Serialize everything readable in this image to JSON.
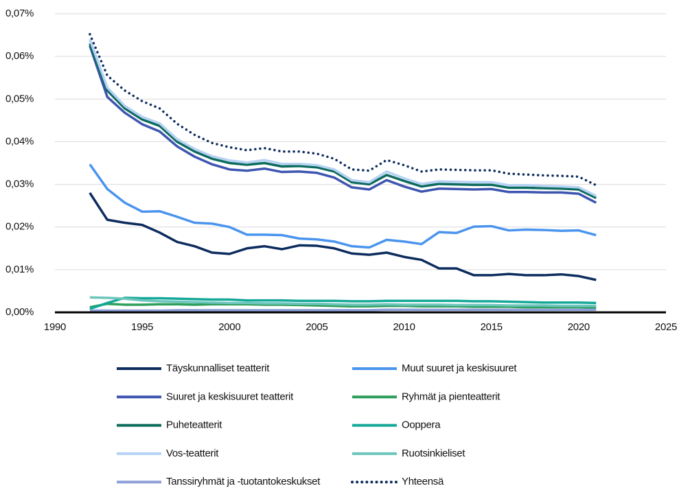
{
  "chart_data": {
    "type": "line",
    "x": [
      1992,
      1993,
      1994,
      1995,
      1996,
      1997,
      1998,
      1999,
      2000,
      2001,
      2002,
      2003,
      2004,
      2005,
      2006,
      2007,
      2008,
      2009,
      2010,
      2011,
      2012,
      2013,
      2014,
      2015,
      2016,
      2017,
      2018,
      2019,
      2020,
      2021
    ],
    "xlim": [
      1990,
      2025
    ],
    "xticks": [
      1990,
      1995,
      2000,
      2005,
      2010,
      2015,
      2020,
      2025
    ],
    "ylim": [
      0,
      0.07
    ],
    "yticks": [
      {
        "value": 0,
        "label": "0,00%"
      },
      {
        "value": 0.01,
        "label": "0,01%"
      },
      {
        "value": 0.02,
        "label": "0,02%"
      },
      {
        "value": 0.03,
        "label": "0,03%"
      },
      {
        "value": 0.04,
        "label": "0,04%"
      },
      {
        "value": 0.05,
        "label": "0,05%"
      },
      {
        "value": 0.06,
        "label": "0,06%"
      },
      {
        "value": 0.07,
        "label": "0,07%"
      }
    ],
    "grid": true,
    "legend": "bottom",
    "series": [
      {
        "name": "Täyskunnalliset teatterit",
        "color": "#0d2c5e",
        "values": [
          0.028,
          0.0217,
          0.021,
          0.0205,
          0.0187,
          0.0165,
          0.0155,
          0.014,
          0.0137,
          0.015,
          0.0155,
          0.0148,
          0.0157,
          0.0156,
          0.015,
          0.0138,
          0.0135,
          0.014,
          0.013,
          0.0123,
          0.0103,
          0.0103,
          0.0087,
          0.0087,
          0.009,
          0.0087,
          0.0087,
          0.0089,
          0.0085,
          0.0076
        ]
      },
      {
        "name": "Muut suuret ja keskisuuret",
        "color": "#4a94ee",
        "values": [
          0.0347,
          0.0289,
          0.0257,
          0.0236,
          0.0237,
          0.0224,
          0.021,
          0.0208,
          0.02,
          0.0182,
          0.0182,
          0.0181,
          0.0173,
          0.0171,
          0.0166,
          0.0155,
          0.0152,
          0.017,
          0.0166,
          0.016,
          0.0188,
          0.0186,
          0.0201,
          0.0202,
          0.0192,
          0.0194,
          0.0193,
          0.0191,
          0.0192,
          0.0181
        ]
      },
      {
        "name": "Suuret ja keskisuuret teatterit",
        "color": "#3d55b0",
        "values": [
          0.0625,
          0.0505,
          0.0468,
          0.0441,
          0.0424,
          0.0389,
          0.0365,
          0.0347,
          0.0335,
          0.0332,
          0.0337,
          0.0329,
          0.033,
          0.0327,
          0.0316,
          0.0293,
          0.0288,
          0.031,
          0.0295,
          0.0283,
          0.029,
          0.0289,
          0.0288,
          0.0289,
          0.0282,
          0.0282,
          0.0281,
          0.0281,
          0.0278,
          0.0257
        ]
      },
      {
        "name": "Ryhmät ja pienteatterit",
        "color": "#2e9e5b",
        "values": [
          0.0012,
          0.002,
          0.0018,
          0.0018,
          0.0019,
          0.0019,
          0.0018,
          0.0019,
          0.0019,
          0.0019,
          0.0018,
          0.0018,
          0.0017,
          0.0016,
          0.0015,
          0.0014,
          0.0014,
          0.0015,
          0.0015,
          0.0014,
          0.0014,
          0.0014,
          0.0013,
          0.0013,
          0.0013,
          0.0012,
          0.0012,
          0.0012,
          0.0012,
          0.0011
        ]
      },
      {
        "name": "Puheteatterit",
        "color": "#0b6b5c",
        "values": [
          0.063,
          0.052,
          0.0478,
          0.0452,
          0.0437,
          0.04,
          0.0377,
          0.036,
          0.035,
          0.0346,
          0.035,
          0.0342,
          0.0343,
          0.034,
          0.033,
          0.0305,
          0.03,
          0.0322,
          0.0308,
          0.0295,
          0.0301,
          0.03,
          0.0299,
          0.0299,
          0.0292,
          0.0292,
          0.0291,
          0.029,
          0.0288,
          0.0268
        ]
      },
      {
        "name": "Ooppera",
        "color": "#14a898",
        "values": [
          0.0008,
          0.0022,
          0.0034,
          0.0033,
          0.0033,
          0.0032,
          0.0031,
          0.003,
          0.003,
          0.0028,
          0.0028,
          0.0028,
          0.0027,
          0.0027,
          0.0027,
          0.0026,
          0.0026,
          0.0027,
          0.0027,
          0.0027,
          0.0027,
          0.0027,
          0.0026,
          0.0026,
          0.0025,
          0.0024,
          0.0023,
          0.0023,
          0.0023,
          0.0022
        ]
      },
      {
        "name": "Vos-teatterit",
        "color": "#b6d2f4",
        "values": [
          0.064,
          0.0527,
          0.0484,
          0.0458,
          0.0443,
          0.0406,
          0.0383,
          0.0366,
          0.0356,
          0.0351,
          0.0357,
          0.0348,
          0.0348,
          0.0345,
          0.0335,
          0.031,
          0.0305,
          0.033,
          0.0314,
          0.0301,
          0.0307,
          0.0306,
          0.0305,
          0.0305,
          0.0298,
          0.0298,
          0.0296,
          0.0295,
          0.0293,
          0.0273
        ]
      },
      {
        "name": "Ruotsinkieliset",
        "color": "#6cc6bd",
        "values": [
          0.0035,
          0.0034,
          0.0032,
          0.0028,
          0.0026,
          0.0025,
          0.0024,
          0.0023,
          0.0022,
          0.0022,
          0.0021,
          0.0021,
          0.002,
          0.002,
          0.0019,
          0.0018,
          0.0018,
          0.0019,
          0.0018,
          0.0018,
          0.0018,
          0.0017,
          0.0017,
          0.0017,
          0.0016,
          0.0016,
          0.0016,
          0.0015,
          0.0015,
          0.0015
        ]
      },
      {
        "name": "Tanssiryhmät ja -tuotantokeskukset",
        "color": "#8c9fd8",
        "values": [
          0.0004,
          0.0004,
          0.0004,
          0.0004,
          0.0004,
          0.0005,
          0.0005,
          0.0005,
          0.0005,
          0.0005,
          0.0005,
          0.0005,
          0.0005,
          0.0005,
          0.0005,
          0.0005,
          0.0005,
          0.0006,
          0.0006,
          0.0006,
          0.0006,
          0.0006,
          0.0006,
          0.0006,
          0.0006,
          0.0006,
          0.0006,
          0.0006,
          0.0006,
          0.0006
        ]
      },
      {
        "name": "Yhteensä",
        "color": "#0d2c5e",
        "dash": "dotted",
        "values": [
          0.0652,
          0.0555,
          0.052,
          0.0495,
          0.0478,
          0.0442,
          0.0416,
          0.0397,
          0.0387,
          0.038,
          0.0385,
          0.0377,
          0.0377,
          0.0372,
          0.036,
          0.0335,
          0.0332,
          0.0357,
          0.0345,
          0.033,
          0.0335,
          0.0334,
          0.0333,
          0.0333,
          0.0325,
          0.0323,
          0.0321,
          0.032,
          0.0318,
          0.0298
        ]
      }
    ]
  }
}
